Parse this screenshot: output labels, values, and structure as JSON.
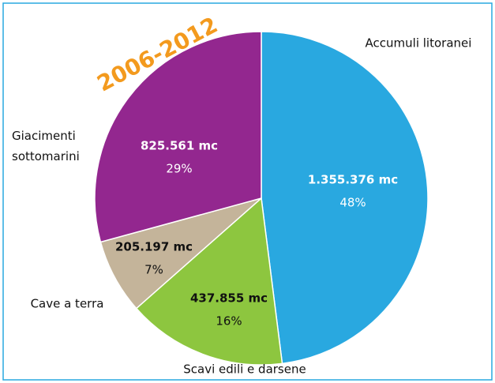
{
  "chart_data": {
    "type": "pie",
    "title": "2006-2012",
    "categories": [
      "Accumuli litoranei",
      "Scavi edili e darsene",
      "Cave a terra",
      "Giacimenti\nsottomarini"
    ],
    "values": [
      1355376,
      437855,
      205197,
      825561
    ],
    "value_labels": [
      "1.355.376 mc",
      "437.855 mc",
      "205.197 mc",
      "825.561 mc"
    ],
    "shares": [
      {
        "value": 48,
        "label": "48%"
      },
      {
        "value": 16,
        "label": "16%"
      },
      {
        "value": 7,
        "label": "7%"
      },
      {
        "value": 29,
        "label": "29%"
      }
    ],
    "colors": [
      "#29a8e0",
      "#8dc63f",
      "#c4b49a",
      "#93278f"
    ]
  }
}
